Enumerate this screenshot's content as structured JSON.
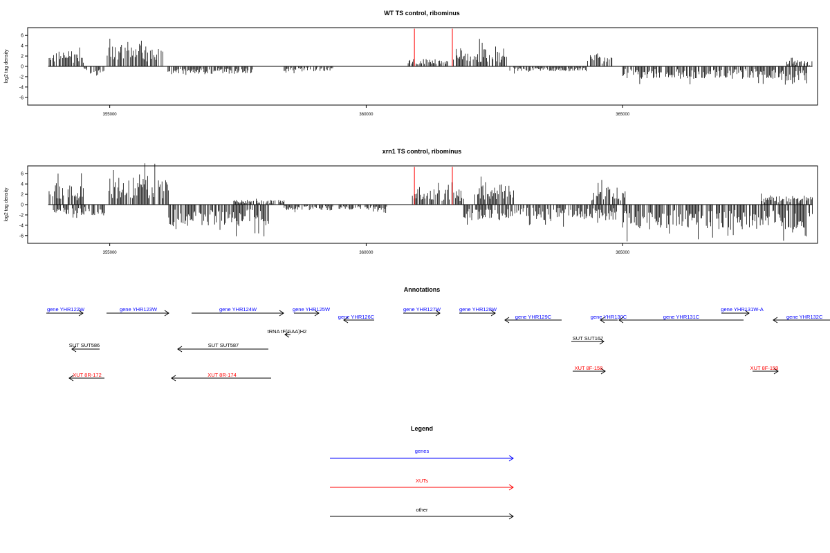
{
  "chart_data": [
    {
      "type": "bar",
      "title": "WT TS control, ribominus",
      "ylabel": "log2 tag density",
      "xlabel": "",
      "xlim": [
        353400,
        368800
      ],
      "ylim": [
        -7.5,
        7.5
      ],
      "yticks": [
        "6",
        "4",
        "2",
        "0",
        "-2",
        "-4",
        "-6"
      ],
      "xticks": [
        "355000",
        "360000",
        "365000"
      ],
      "marker_color": "#ff0000",
      "markers_x": [
        360940,
        361680
      ],
      "regions": [
        {
          "start": 353800,
          "end": 354500,
          "sign": 1,
          "amp": 2.5
        },
        {
          "start": 354500,
          "end": 354900,
          "sign": -1,
          "amp": 1.2
        },
        {
          "start": 354950,
          "end": 356050,
          "sign": 1,
          "amp": 3.5
        },
        {
          "start": 356100,
          "end": 357800,
          "sign": -1,
          "amp": 1.3
        },
        {
          "start": 358400,
          "end": 359400,
          "sign": -1,
          "amp": 0.8
        },
        {
          "start": 360800,
          "end": 361600,
          "sign": 1,
          "amp": 1.2
        },
        {
          "start": 361700,
          "end": 362750,
          "sign": 1,
          "amp": 3.0
        },
        {
          "start": 362800,
          "end": 364300,
          "sign": -1,
          "amp": 0.8
        },
        {
          "start": 364300,
          "end": 364800,
          "sign": 1,
          "amp": 2.0
        },
        {
          "start": 365000,
          "end": 367300,
          "sign": -1,
          "amp": 2.0
        },
        {
          "start": 367300,
          "end": 368100,
          "sign": -1,
          "amp": 2.0
        },
        {
          "start": 368100,
          "end": 368600,
          "sign": -1,
          "amp": 3.0
        },
        {
          "start": 368200,
          "end": 368700,
          "sign": 1,
          "amp": 1.0
        }
      ]
    },
    {
      "type": "bar",
      "title": "xrn1 TS control, ribominus",
      "ylabel": "log2 tag density",
      "xlabel": "",
      "xlim": [
        353400,
        368800
      ],
      "ylim": [
        -7.5,
        7.5
      ],
      "yticks": [
        "6",
        "4",
        "2",
        "0",
        "-2",
        "-4",
        "-6"
      ],
      "xticks": [
        "355000",
        "360000",
        "365000"
      ],
      "marker_color": "#ff0000",
      "markers_x": [
        360940,
        361680
      ],
      "regions": [
        {
          "start": 353800,
          "end": 354500,
          "sign": 1,
          "amp": 3.5
        },
        {
          "start": 353900,
          "end": 354900,
          "sign": -1,
          "amp": 1.8
        },
        {
          "start": 354950,
          "end": 356150,
          "sign": 1,
          "amp": 4.5
        },
        {
          "start": 356150,
          "end": 358100,
          "sign": -1,
          "amp": 3.5
        },
        {
          "start": 357400,
          "end": 358400,
          "sign": 1,
          "amp": 0.8
        },
        {
          "start": 358400,
          "end": 360400,
          "sign": -1,
          "amp": 0.9
        },
        {
          "start": 360900,
          "end": 361900,
          "sign": 1,
          "amp": 2.5
        },
        {
          "start": 361900,
          "end": 362900,
          "sign": -1,
          "amp": 2.5
        },
        {
          "start": 362100,
          "end": 362900,
          "sign": 1,
          "amp": 3.5
        },
        {
          "start": 362900,
          "end": 364900,
          "sign": -1,
          "amp": 2.5
        },
        {
          "start": 364400,
          "end": 365050,
          "sign": 1,
          "amp": 3.0
        },
        {
          "start": 365000,
          "end": 368700,
          "sign": -1,
          "amp": 4.0
        },
        {
          "start": 367700,
          "end": 368700,
          "sign": 1,
          "amp": 1.5
        }
      ]
    }
  ],
  "annotations": {
    "title": "Annotations",
    "items": [
      {
        "label": "gene YHR122W",
        "color": "#0000ff",
        "dir": "right"
      },
      {
        "label": "gene YHR123W",
        "color": "#0000ff",
        "dir": "right"
      },
      {
        "label": "gene YHR124W",
        "color": "#0000ff",
        "dir": "right"
      },
      {
        "label": "gene YHR125W",
        "color": "#0000ff",
        "dir": "right"
      },
      {
        "label": "gene YHR126C",
        "color": "#0000ff",
        "dir": "left"
      },
      {
        "label": "gene YHR127W",
        "color": "#0000ff",
        "dir": "right"
      },
      {
        "label": "gene YHR128W",
        "color": "#0000ff",
        "dir": "right"
      },
      {
        "label": "gene YHR129C",
        "color": "#0000ff",
        "dir": "left"
      },
      {
        "label": "gene YHR130C",
        "color": "#0000ff",
        "dir": "left"
      },
      {
        "label": "gene YHR131C",
        "color": "#0000ff",
        "dir": "left"
      },
      {
        "label": "gene YHR131W-A",
        "color": "#0000ff",
        "dir": "right"
      },
      {
        "label": "gene YHR132C",
        "color": "#0000ff",
        "dir": "left"
      },
      {
        "label": "tRNA tF(GAA)H2",
        "color": "#000000",
        "dir": "left"
      },
      {
        "label": "SUT SUT586",
        "color": "#000000",
        "dir": "left"
      },
      {
        "label": "SUT SUT587",
        "color": "#000000",
        "dir": "left"
      },
      {
        "label": "SUT SUT167",
        "color": "#000000",
        "dir": "right"
      },
      {
        "label": "XUT 8R-172",
        "color": "#ff0000",
        "dir": "left"
      },
      {
        "label": "XUT 8R-174",
        "color": "#ff0000",
        "dir": "left"
      },
      {
        "label": "XUT 8F-158",
        "color": "#ff0000",
        "dir": "right"
      },
      {
        "label": "XUT 8F-159",
        "color": "#ff0000",
        "dir": "right"
      }
    ]
  },
  "legend": {
    "title": "Legend",
    "items": [
      {
        "label": "genes",
        "color": "#0000ff"
      },
      {
        "label": "XUTs",
        "color": "#ff0000"
      },
      {
        "label": "other",
        "color": "#000000"
      }
    ]
  }
}
